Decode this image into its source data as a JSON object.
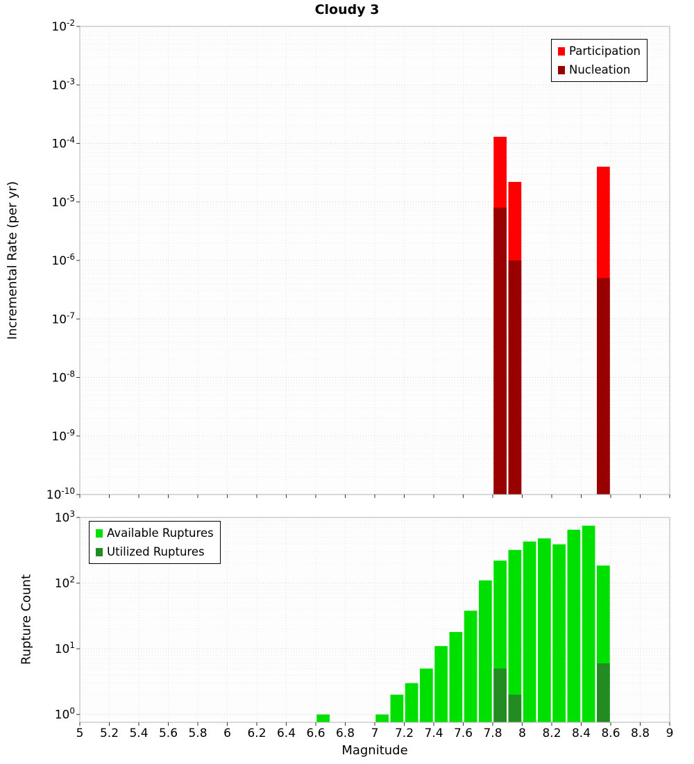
{
  "chart_data": [
    {
      "type": "bar",
      "title": "Cloudy 3",
      "ylabel": "Incremental Rate (per yr)",
      "yscale": "log",
      "ylim": [
        1e-10,
        0.01
      ],
      "xlim": [
        5,
        9
      ],
      "bin_width": 0.1,
      "grid": true,
      "legend_position": "top-right",
      "series": [
        {
          "name": "Participation",
          "color": "#FF0000",
          "points": [
            [
              7.85,
              0.00013
            ],
            [
              7.95,
              2.2e-05
            ],
            [
              8.55,
              4e-05
            ]
          ]
        },
        {
          "name": "Nucleation",
          "color": "#990000",
          "points": [
            [
              7.85,
              8e-06
            ],
            [
              7.95,
              1e-06
            ],
            [
              8.55,
              5e-07
            ]
          ]
        }
      ]
    },
    {
      "type": "bar",
      "xlabel": "Magnitude",
      "ylabel": "Rupture Count",
      "yscale": "log",
      "ylim": [
        1,
        1000
      ],
      "xlim": [
        5,
        9
      ],
      "bin_width": 0.1,
      "grid": true,
      "legend_position": "top-left",
      "series": [
        {
          "name": "Available Ruptures",
          "color": "#00E000",
          "points": [
            [
              6.65,
              1
            ],
            [
              7.05,
              1
            ],
            [
              7.15,
              2
            ],
            [
              7.25,
              3
            ],
            [
              7.35,
              5
            ],
            [
              7.45,
              11
            ],
            [
              7.55,
              18
            ],
            [
              7.65,
              38
            ],
            [
              7.75,
              110
            ],
            [
              7.85,
              220
            ],
            [
              7.95,
              320
            ],
            [
              8.05,
              430
            ],
            [
              8.15,
              480
            ],
            [
              8.25,
              390
            ],
            [
              8.35,
              650
            ],
            [
              8.45,
              750
            ],
            [
              8.55,
              185
            ]
          ]
        },
        {
          "name": "Utilized Ruptures",
          "color": "#228B22",
          "points": [
            [
              7.85,
              5
            ],
            [
              7.95,
              2
            ],
            [
              8.55,
              6
            ]
          ]
        }
      ]
    }
  ],
  "x_ticks": [
    "5",
    "5.2",
    "5.4",
    "5.6",
    "5.8",
    "6",
    "6.2",
    "6.4",
    "6.6",
    "6.8",
    "7",
    "7.2",
    "7.4",
    "7.6",
    "7.8",
    "8",
    "8.2",
    "8.4",
    "8.6",
    "8.8",
    "9"
  ]
}
